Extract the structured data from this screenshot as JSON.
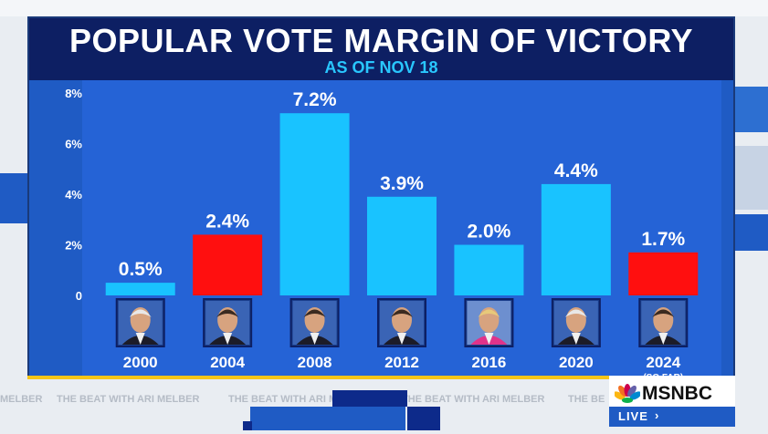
{
  "chart_data": {
    "type": "bar",
    "title": "POPULAR VOTE MARGIN OF VICTORY",
    "subtitle": "AS OF NOV 18",
    "categories": [
      "2000",
      "2004",
      "2008",
      "2012",
      "2016",
      "2020",
      "2024"
    ],
    "category_notes": [
      "",
      "",
      "",
      "",
      "",
      "",
      "(SO FAR)"
    ],
    "values": [
      0.5,
      2.4,
      7.2,
      3.9,
      2.0,
      4.4,
      1.7
    ],
    "value_labels": [
      "0.5%",
      "2.4%",
      "7.2%",
      "3.9%",
      "2.0%",
      "4.4%",
      "1.7%"
    ],
    "bar_colors": [
      "#19c3ff",
      "#ff0f0f",
      "#19c3ff",
      "#19c3ff",
      "#19c3ff",
      "#19c3ff",
      "#ff0f0f"
    ],
    "portrait_icons": [
      "portrait-2000-icon",
      "portrait-2004-icon",
      "portrait-2008-icon",
      "portrait-2012-icon",
      "portrait-2016-icon",
      "portrait-2020-icon",
      "portrait-2024-icon"
    ],
    "yticks": [
      "0",
      "2%",
      "4%",
      "6%",
      "8%"
    ],
    "ytick_values": [
      0,
      2,
      4,
      6,
      8
    ],
    "ylim": [
      0,
      8
    ],
    "grid": false,
    "legend": "none",
    "colors": {
      "democrat": "#19c3ff",
      "republican": "#ff0f0f",
      "panel": "#1f5bc4",
      "header": "#0d1f63"
    }
  },
  "ticker": {
    "segments": [
      "MELBER",
      "THE BEAT WITH ARI MELBER",
      "THE BEAT WITH ARI MELBER",
      "THE BEAT WITH ARI MELBER",
      "THE BE"
    ]
  },
  "network": {
    "logo": "MSNBC",
    "live": "LIVE"
  }
}
